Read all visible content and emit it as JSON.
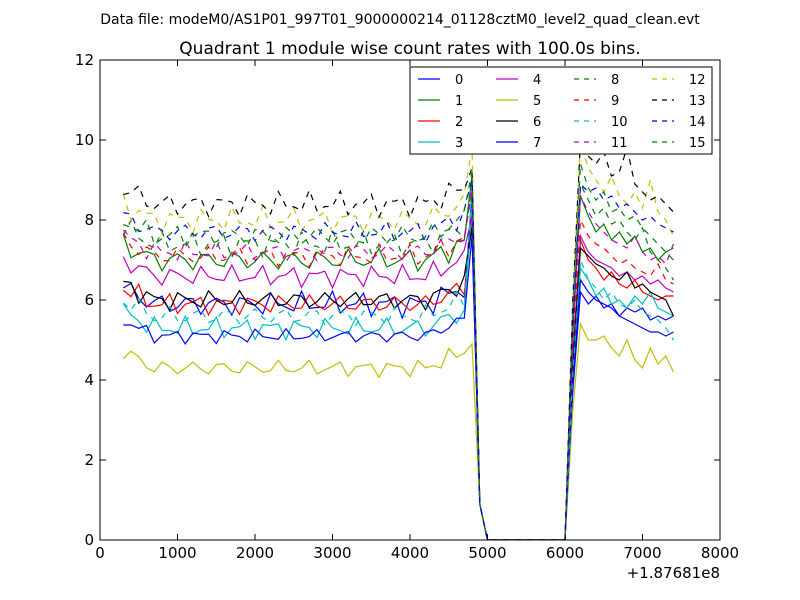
{
  "suptitle": "Data file: modeM0/AS1P01_997T01_9000000214_01128cztM0_level2_quad_clean.evt",
  "chart_data": {
    "type": "line",
    "title": "Quadrant 1 module wise count rates with 100.0s bins.",
    "xlabel": "",
    "ylabel": "",
    "x_offset_label": "+1.87681e8",
    "xlim": [
      0,
      8000
    ],
    "ylim": [
      0,
      12
    ],
    "xticks": [
      "0",
      "1000",
      "2000",
      "3000",
      "4000",
      "5000",
      "6000",
      "7000",
      "8000"
    ],
    "yticks": [
      "0",
      "2",
      "4",
      "6",
      "8",
      "10",
      "12"
    ],
    "legend_position": "top-right",
    "gap": {
      "drop_start": 4800,
      "zero_from": 5000,
      "zero_to": 6000,
      "rise_end": 6200
    },
    "segment1_x": [
      300,
      400,
      500,
      600,
      700,
      800,
      900,
      1000,
      1100,
      1200,
      1300,
      1400,
      1500,
      1600,
      1700,
      1800,
      1900,
      2000,
      2100,
      2200,
      2300,
      2400,
      2500,
      2600,
      2700,
      2800,
      2900,
      3000,
      3100,
      3200,
      3300,
      3400,
      3500,
      3600,
      3700,
      3800,
      3900,
      4000,
      4100,
      4200,
      4300,
      4400,
      4500,
      4600,
      4700,
      4800,
      4900,
      5000,
      6000,
      6100,
      6200
    ],
    "segment2_x": [
      6200,
      6300,
      6400,
      6500,
      6600,
      6700,
      6800,
      6900,
      7000,
      7100,
      7200,
      7300,
      7400
    ],
    "series": [
      {
        "name": "0",
        "color": "#0000ff",
        "style": "solid",
        "base1": 5.9,
        "amp": 0.35,
        "peak": 8.6,
        "seg2": [
          6.2,
          5.9,
          6.1,
          5.8,
          5.9,
          5.6,
          5.8,
          5.7,
          5.8,
          5.5,
          5.6,
          5.5,
          5.6
        ]
      },
      {
        "name": "1",
        "color": "#008000",
        "style": "solid",
        "base1": 7.0,
        "amp": 0.35,
        "peak": 9.1,
        "seg2": [
          8.6,
          8.1,
          7.7,
          7.9,
          7.5,
          7.7,
          7.4,
          7.6,
          7.2,
          7.3,
          7.0,
          7.2,
          7.3
        ]
      },
      {
        "name": "2",
        "color": "#ff0000",
        "style": "solid",
        "base1": 5.9,
        "amp": 0.3,
        "peak": 8.0,
        "seg2": [
          7.5,
          7.0,
          6.8,
          6.5,
          6.7,
          6.4,
          6.3,
          6.5,
          6.2,
          6.1,
          6.0,
          6.1,
          6.1
        ]
      },
      {
        "name": "3",
        "color": "#00bfbf",
        "style": "solid",
        "base1": 5.3,
        "amp": 0.3,
        "peak": 8.3,
        "seg2": [
          6.8,
          6.5,
          6.1,
          6.3,
          5.9,
          6.0,
          5.8,
          6.1,
          5.9,
          6.2,
          5.8,
          5.7,
          5.6
        ]
      },
      {
        "name": "4",
        "color": "#bf00bf",
        "style": "solid",
        "base1": 6.6,
        "amp": 0.3,
        "peak": 8.1,
        "seg2": [
          7.6,
          7.2,
          7.0,
          6.9,
          6.8,
          6.6,
          6.7,
          6.5,
          6.6,
          6.4,
          6.5,
          6.3,
          6.2
        ]
      },
      {
        "name": "5",
        "color": "#bfbf00",
        "style": "solid",
        "base1": 4.3,
        "amp": 0.25,
        "peak": 4.9,
        "seg2": [
          5.4,
          5.0,
          5.0,
          5.1,
          4.8,
          4.6,
          5.0,
          4.5,
          4.3,
          4.8,
          4.4,
          4.6,
          4.2
        ]
      },
      {
        "name": "6",
        "color": "#000000",
        "style": "solid",
        "base1": 6.0,
        "amp": 0.3,
        "peak": 7.8,
        "seg2": [
          7.3,
          7.1,
          6.9,
          6.8,
          6.6,
          6.5,
          6.7,
          6.3,
          6.4,
          6.2,
          6.1,
          6.0,
          5.6
        ]
      },
      {
        "name": "7",
        "color": "#0000ff",
        "style": "solid",
        "base1": 5.1,
        "amp": 0.2,
        "peak": 7.6,
        "seg2": [
          6.5,
          6.2,
          6.0,
          5.9,
          5.8,
          5.6,
          5.5,
          5.4,
          5.3,
          5.2,
          5.2,
          5.1,
          5.2
        ]
      },
      {
        "name": "8",
        "color": "#008000",
        "style": "dashed",
        "base1": 7.4,
        "amp": 0.35,
        "peak": 8.8,
        "seg2": [
          8.9,
          8.5,
          8.1,
          8.3,
          7.9,
          8.0,
          7.7,
          7.5,
          7.8,
          7.2,
          7.0,
          6.8,
          6.5
        ]
      },
      {
        "name": "9",
        "color": "#ff0000",
        "style": "dashed",
        "base1": 7.1,
        "amp": 0.3,
        "peak": 8.7,
        "seg2": [
          8.0,
          7.6,
          7.4,
          7.3,
          7.1,
          6.9,
          7.0,
          6.8,
          6.7,
          6.6,
          6.9,
          6.5,
          6.4
        ]
      },
      {
        "name": "10",
        "color": "#00bfbf",
        "style": "dashed",
        "base1": 5.6,
        "amp": 0.3,
        "peak": 8.8,
        "seg2": [
          7.0,
          6.5,
          6.3,
          6.0,
          6.2,
          5.9,
          5.8,
          6.0,
          5.7,
          5.6,
          5.5,
          5.3,
          5.0
        ]
      },
      {
        "name": "11",
        "color": "#bf00bf",
        "style": "dashed",
        "base1": 7.2,
        "amp": 0.3,
        "peak": 8.8,
        "seg2": [
          8.6,
          8.2,
          7.9,
          7.7,
          7.5,
          7.4,
          7.3,
          7.6,
          7.2,
          7.0,
          7.1,
          6.9,
          7.4
        ]
      },
      {
        "name": "12",
        "color": "#bfbf00",
        "style": "dashed",
        "base1": 8.0,
        "amp": 0.35,
        "peak": 9.8,
        "seg2": [
          9.9,
          9.3,
          9.0,
          8.7,
          9.1,
          8.6,
          8.4,
          8.7,
          8.3,
          9.0,
          8.2,
          8.0,
          7.6
        ]
      },
      {
        "name": "13",
        "color": "#000000",
        "style": "dashed",
        "base1": 8.4,
        "amp": 0.35,
        "peak": 9.3,
        "seg2": [
          10.0,
          9.6,
          9.4,
          9.7,
          9.1,
          9.2,
          9.8,
          8.9,
          8.7,
          8.5,
          8.6,
          8.4,
          8.2
        ]
      },
      {
        "name": "14",
        "color": "#0000ff",
        "style": "dashed",
        "base1": 7.7,
        "amp": 0.3,
        "peak": 9.0,
        "seg2": [
          8.9,
          8.7,
          8.8,
          8.5,
          8.6,
          8.3,
          8.4,
          8.2,
          8.0,
          8.1,
          7.9,
          7.8,
          7.7
        ]
      },
      {
        "name": "15",
        "color": "#008000",
        "style": "dashed",
        "base1": 7.6,
        "amp": 0.35,
        "peak": 9.2,
        "seg2": [
          9.4,
          8.8,
          8.5,
          8.7,
          8.2,
          8.3,
          8.0,
          8.1,
          7.8,
          7.6,
          7.4,
          7.2,
          7.0
        ]
      }
    ]
  }
}
